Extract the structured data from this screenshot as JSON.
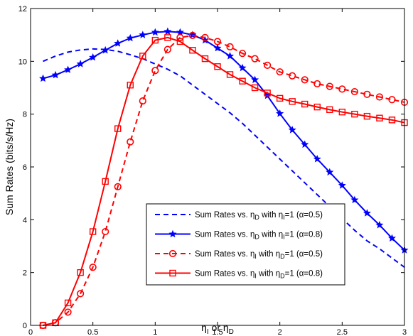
{
  "chart_data": {
    "type": "line",
    "xlabel": {
      "main": "η",
      "sub1": "I",
      "mid": " or η",
      "sub2": "D"
    },
    "ylabel": "Sum Rates (bits/s/Hz)",
    "xlim": [
      0,
      3
    ],
    "ylim": [
      0,
      12
    ],
    "xticks": [
      0,
      0.5,
      1,
      1.5,
      2,
      2.5,
      3
    ],
    "xtick_labels": [
      "0",
      "0.5",
      "1",
      "1.5",
      "2",
      "2.5",
      "3"
    ],
    "yticks": [
      0,
      2,
      4,
      6,
      8,
      10,
      12
    ],
    "ytick_labels": [
      "0",
      "2",
      "4",
      "6",
      "8",
      "10",
      "12"
    ],
    "grid": false,
    "legend_position": "bottom-right",
    "series": [
      {
        "legend": {
          "a": "Sum Rates vs. η",
          "sa": "D",
          "b": " with η",
          "sb": "I",
          "c": "=1 (α=0.5)"
        },
        "color": "#0000ff",
        "style": "dashed",
        "marker": "none",
        "x": [
          0.1,
          0.2,
          0.3,
          0.4,
          0.5,
          0.6,
          0.7,
          0.8,
          0.9,
          1.0,
          1.1,
          1.2,
          1.3,
          1.4,
          1.5,
          1.6,
          1.7,
          1.8,
          1.9,
          2.0,
          2.1,
          2.2,
          2.3,
          2.4,
          2.5,
          2.6,
          2.7,
          2.8,
          2.9,
          3.0
        ],
        "y": [
          10.0,
          10.2,
          10.35,
          10.43,
          10.47,
          10.45,
          10.38,
          10.25,
          10.1,
          9.9,
          9.7,
          9.45,
          9.1,
          8.75,
          8.4,
          8.05,
          7.65,
          7.2,
          6.75,
          6.3,
          5.85,
          5.4,
          4.95,
          4.5,
          4.05,
          3.6,
          3.2,
          2.9,
          2.55,
          2.2
        ]
      },
      {
        "legend": {
          "a": "Sum Rates vs. η",
          "sa": "D",
          "b": " with η",
          "sb": "I",
          "c": "=1 (α=0.8)"
        },
        "color": "#0000ff",
        "style": "solid",
        "marker": "star",
        "x": [
          0.1,
          0.2,
          0.3,
          0.4,
          0.5,
          0.6,
          0.7,
          0.8,
          0.9,
          1.0,
          1.1,
          1.2,
          1.3,
          1.4,
          1.5,
          1.6,
          1.7,
          1.8,
          1.9,
          2.0,
          2.1,
          2.2,
          2.3,
          2.4,
          2.5,
          2.6,
          2.7,
          2.8,
          2.9,
          3.0
        ],
        "y": [
          9.35,
          9.48,
          9.68,
          9.9,
          10.15,
          10.42,
          10.68,
          10.88,
          11.0,
          11.1,
          11.13,
          11.1,
          11.0,
          10.8,
          10.5,
          10.2,
          9.75,
          9.3,
          8.7,
          8.02,
          7.4,
          6.85,
          6.3,
          5.8,
          5.3,
          4.75,
          4.25,
          3.8,
          3.3,
          2.85
        ]
      },
      {
        "legend": {
          "a": "Sum Rates vs. η",
          "sa": "I",
          "b": " with η",
          "sb": "D",
          "c": "=1 (α=0.5)"
        },
        "color": "#ff0000",
        "style": "dashed",
        "marker": "circle",
        "x": [
          0.1,
          0.2,
          0.3,
          0.4,
          0.5,
          0.6,
          0.7,
          0.8,
          0.9,
          1.0,
          1.1,
          1.2,
          1.3,
          1.4,
          1.5,
          1.6,
          1.7,
          1.8,
          1.9,
          2.0,
          2.1,
          2.2,
          2.3,
          2.4,
          2.5,
          2.6,
          2.7,
          2.8,
          2.9,
          3.0
        ],
        "y": [
          0.0,
          0.1,
          0.5,
          1.2,
          2.2,
          3.55,
          5.25,
          6.95,
          8.5,
          9.65,
          10.45,
          10.9,
          10.98,
          10.9,
          10.75,
          10.55,
          10.3,
          10.1,
          9.85,
          9.6,
          9.45,
          9.3,
          9.15,
          9.05,
          8.95,
          8.85,
          8.75,
          8.65,
          8.55,
          8.45
        ]
      },
      {
        "legend": {
          "a": "Sum Rates vs. η",
          "sa": "I",
          "b": " with η",
          "sb": "D",
          "c": "=1 (α=0.8)"
        },
        "color": "#ff0000",
        "style": "solid",
        "marker": "square",
        "x": [
          0.1,
          0.2,
          0.3,
          0.4,
          0.5,
          0.6,
          0.7,
          0.8,
          0.9,
          1.0,
          1.1,
          1.2,
          1.3,
          1.4,
          1.5,
          1.6,
          1.7,
          1.8,
          1.9,
          2.0,
          2.1,
          2.2,
          2.3,
          2.4,
          2.5,
          2.6,
          2.7,
          2.8,
          2.9,
          3.0
        ],
        "y": [
          0.0,
          0.1,
          0.85,
          2.0,
          3.55,
          5.45,
          7.45,
          9.1,
          10.2,
          10.8,
          10.9,
          10.75,
          10.42,
          10.1,
          9.8,
          9.5,
          9.25,
          9.0,
          8.8,
          8.6,
          8.48,
          8.38,
          8.27,
          8.17,
          8.08,
          8.0,
          7.92,
          7.85,
          7.78,
          7.68
        ]
      }
    ]
  }
}
